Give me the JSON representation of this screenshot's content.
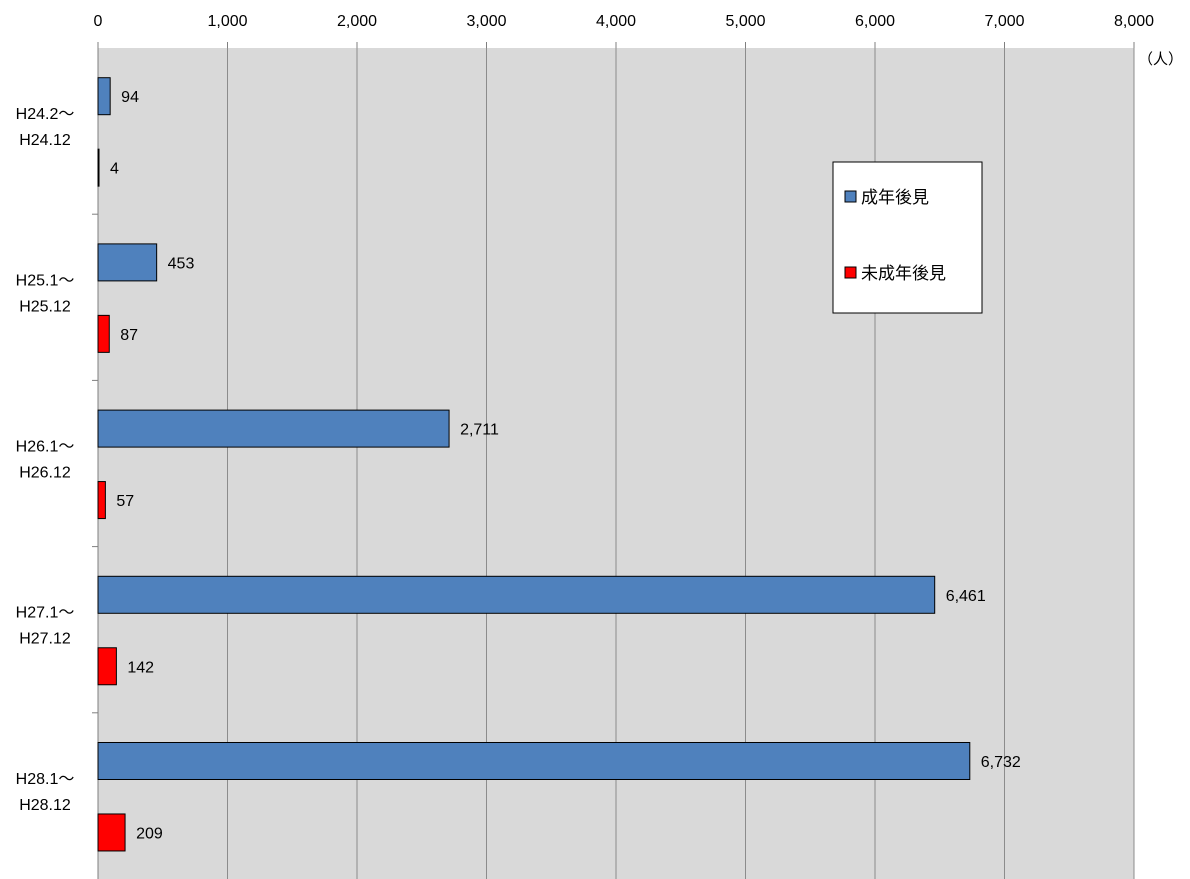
{
  "chart_data": {
    "type": "bar",
    "orientation": "horizontal",
    "categories": [
      [
        "H24.2～",
        "H24.12"
      ],
      [
        "H25.1～",
        "H25.12"
      ],
      [
        "H26.1～",
        "H26.12"
      ],
      [
        "H27.1～",
        "H27.12"
      ],
      [
        "H28.1～",
        "H28.12"
      ]
    ],
    "series": [
      {
        "name": "成年後見",
        "color": "#4f81bd",
        "values": [
          94,
          453,
          2711,
          6461,
          6732
        ],
        "labels": [
          "94",
          "453",
          "2,711",
          "6,461",
          "6,732"
        ]
      },
      {
        "name": "未成年後見",
        "color": "#ff0000",
        "values": [
          4,
          87,
          57,
          142,
          209
        ],
        "labels": [
          "4",
          "87",
          "57",
          "142",
          "209"
        ]
      }
    ],
    "xlim": [
      0,
      8000
    ],
    "xticks": [
      0,
      1000,
      2000,
      3000,
      4000,
      5000,
      6000,
      7000,
      8000
    ],
    "xtick_labels": [
      "0",
      "1,000",
      "2,000",
      "3,000",
      "4,000",
      "5,000",
      "6,000",
      "7,000",
      "8,000"
    ],
    "unit": "（人）",
    "plot_background": "#d9d9d9",
    "grid": true,
    "legend_position": "upper-right"
  }
}
